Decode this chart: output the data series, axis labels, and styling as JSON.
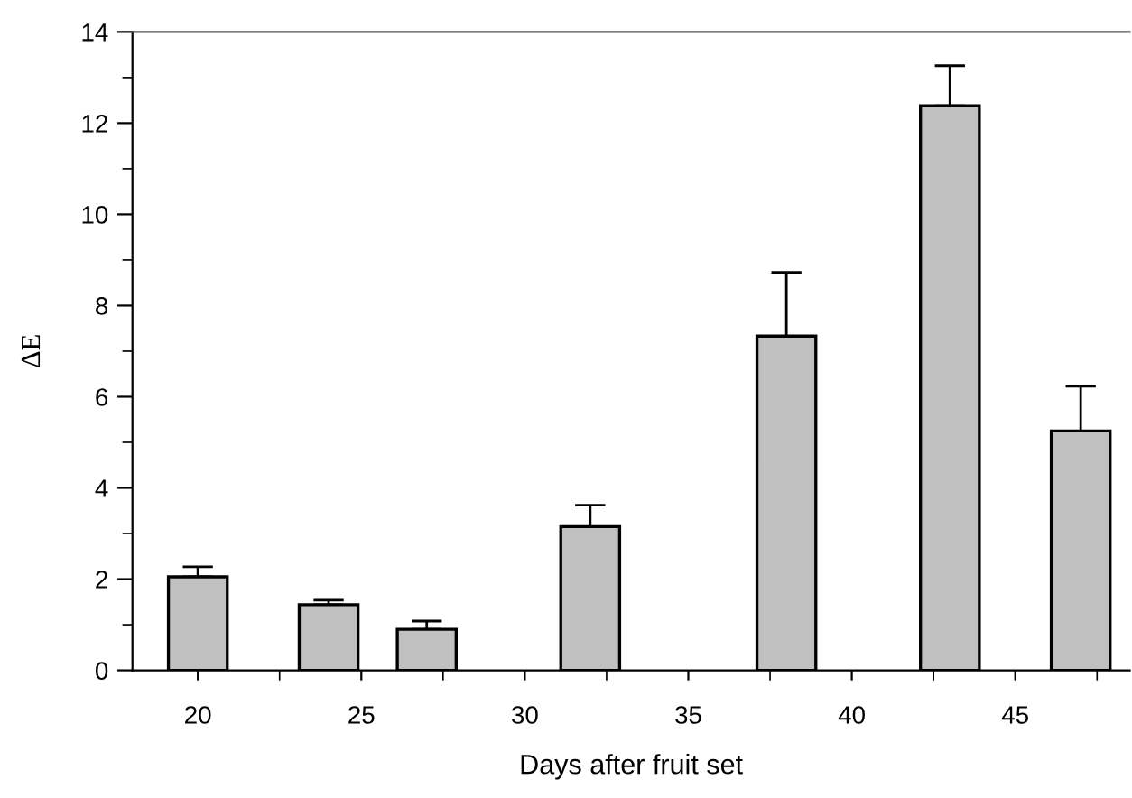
{
  "chart_data": {
    "type": "bar",
    "xlabel": "Days after fruit set",
    "ylabel": "ΔE",
    "x": [
      20,
      24,
      27,
      32,
      38,
      43,
      47
    ],
    "series": [
      {
        "color": "#c0c0c0",
        "values": [
          2.05,
          1.44,
          0.9,
          3.15,
          7.33,
          12.38,
          5.25
        ],
        "errors": [
          [
            2.05,
            2.27
          ],
          [
            1.44,
            1.54
          ],
          [
            0.9,
            1.08
          ],
          [
            3.15,
            3.62
          ],
          [
            7.33,
            8.73
          ],
          [
            12.38,
            13.26
          ],
          [
            5.25,
            6.23
          ]
        ]
      }
    ],
    "xlim": [
      18,
      48.5
    ],
    "xticks": [
      20,
      25,
      30,
      35,
      40,
      45
    ],
    "ylim": [
      0,
      14
    ],
    "yticks": [
      0,
      2,
      4,
      6,
      8,
      10,
      12,
      14
    ],
    "grid": false,
    "legend": false
  }
}
